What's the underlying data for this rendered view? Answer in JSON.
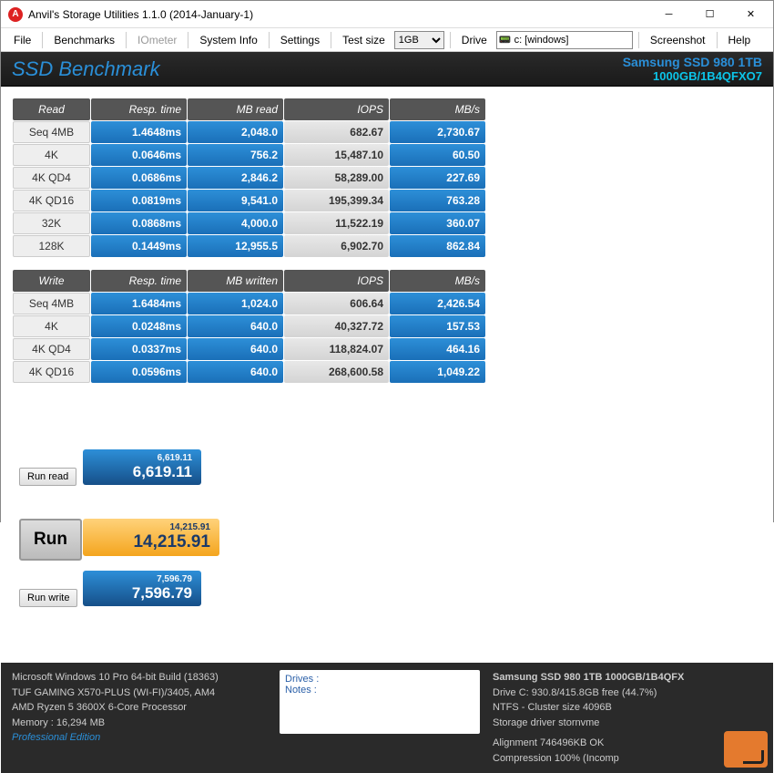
{
  "window": {
    "title": "Anvil's Storage Utilities 1.1.0 (2014-January-1)"
  },
  "menu": {
    "file": "File",
    "benchmarks": "Benchmarks",
    "iometer": "IOmeter",
    "system_info": "System Info",
    "settings": "Settings",
    "test_size_label": "Test size",
    "test_size_value": "1GB",
    "drive_label": "Drive",
    "drive_value": "📟 c: [windows]",
    "screenshot": "Screenshot",
    "help": "Help"
  },
  "header": {
    "title": "SSD Benchmark",
    "device": "Samsung SSD 980 1TB",
    "serial": "1000GB/1B4QFXO7"
  },
  "read_table": {
    "hdr": [
      "Read",
      "Resp. time",
      "MB read",
      "IOPS",
      "MB/s"
    ],
    "rows": [
      {
        "label": "Seq 4MB",
        "resp": "1.4648ms",
        "mb": "2,048.0",
        "iops": "682.67",
        "mbs": "2,730.67"
      },
      {
        "label": "4K",
        "resp": "0.0646ms",
        "mb": "756.2",
        "iops": "15,487.10",
        "mbs": "60.50"
      },
      {
        "label": "4K QD4",
        "resp": "0.0686ms",
        "mb": "2,846.2",
        "iops": "58,289.00",
        "mbs": "227.69"
      },
      {
        "label": "4K QD16",
        "resp": "0.0819ms",
        "mb": "9,541.0",
        "iops": "195,399.34",
        "mbs": "763.28"
      },
      {
        "label": "32K",
        "resp": "0.0868ms",
        "mb": "4,000.0",
        "iops": "11,522.19",
        "mbs": "360.07"
      },
      {
        "label": "128K",
        "resp": "0.1449ms",
        "mb": "12,955.5",
        "iops": "6,902.70",
        "mbs": "862.84"
      }
    ]
  },
  "write_table": {
    "hdr": [
      "Write",
      "Resp. time",
      "MB written",
      "IOPS",
      "MB/s"
    ],
    "rows": [
      {
        "label": "Seq 4MB",
        "resp": "1.6484ms",
        "mb": "1,024.0",
        "iops": "606.64",
        "mbs": "2,426.54"
      },
      {
        "label": "4K",
        "resp": "0.0248ms",
        "mb": "640.0",
        "iops": "40,327.72",
        "mbs": "157.53"
      },
      {
        "label": "4K QD4",
        "resp": "0.0337ms",
        "mb": "640.0",
        "iops": "118,824.07",
        "mbs": "464.16"
      },
      {
        "label": "4K QD16",
        "resp": "0.0596ms",
        "mb": "640.0",
        "iops": "268,600.58",
        "mbs": "1,049.22"
      }
    ]
  },
  "buttons": {
    "run_read": "Run read",
    "run": "Run",
    "run_write": "Run write"
  },
  "scores": {
    "read_small": "6,619.11",
    "read_big": "6,619.11",
    "total_small": "14,215.91",
    "total_big": "14,215.91",
    "write_small": "7,596.79",
    "write_big": "7,596.79"
  },
  "footer": {
    "os": "Microsoft Windows 10 Pro 64-bit Build (18363)",
    "mobo": "TUF GAMING X570-PLUS (WI-FI)/3405, AM4",
    "cpu": "AMD Ryzen 5 3600X 6-Core Processor",
    "mem": "Memory : 16,294 MB",
    "edition": "Professional Edition",
    "drives_label": "Drives :",
    "notes_label": "Notes :",
    "drive1": "Samsung SSD 980 1TB 1000GB/1B4QFX",
    "drive2": "Drive C: 930.8/415.8GB free (44.7%)",
    "drive3": "NTFS - Cluster size 4096B",
    "drive4": "Storage driver  stornvme",
    "align": "Alignment 746496KB OK",
    "comp": "Compression 100% (Incomp"
  }
}
